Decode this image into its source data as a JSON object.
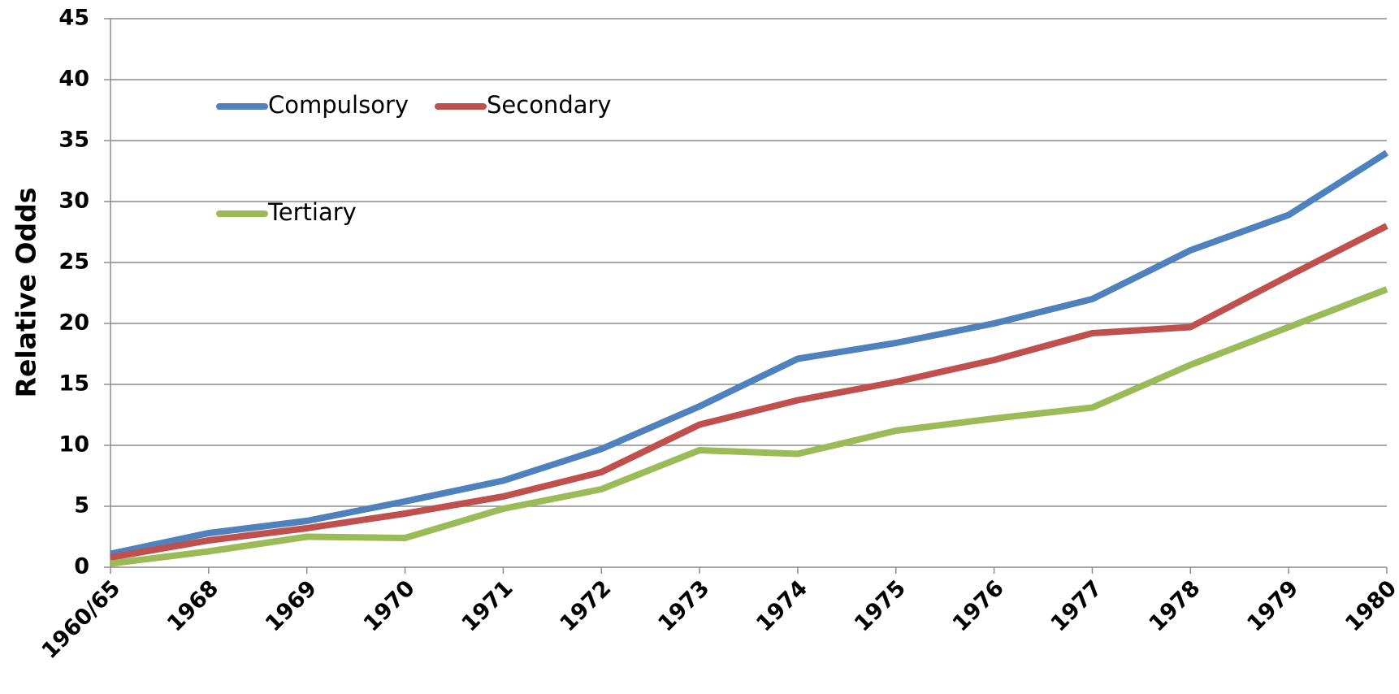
{
  "chart_data": {
    "type": "line",
    "y_label": "Relative Odds",
    "categories": [
      "1960/65",
      "1968",
      "1969",
      "1970",
      "1971",
      "1972",
      "1973",
      "1974",
      "1975",
      "1976",
      "1977",
      "1978",
      "1979",
      "1980"
    ],
    "series": [
      {
        "name": "Compulsory",
        "color": "#4f81bd",
        "values": [
          1.1,
          2.8,
          3.8,
          5.4,
          7.1,
          9.7,
          13.2,
          17.1,
          18.4,
          20.0,
          22.0,
          26.0,
          28.9,
          34.0
        ]
      },
      {
        "name": "Secondary",
        "color": "#c0504d",
        "values": [
          0.8,
          2.2,
          3.2,
          4.4,
          5.8,
          7.8,
          11.7,
          13.7,
          15.2,
          17.0,
          19.2,
          19.7,
          23.9,
          28.0
        ]
      },
      {
        "name": "Tertiary",
        "color": "#9bbb59",
        "values": [
          0.3,
          1.3,
          2.5,
          2.4,
          4.8,
          6.4,
          9.6,
          9.3,
          11.2,
          12.2,
          13.1,
          16.6,
          19.7,
          22.8
        ]
      }
    ],
    "ylim": [
      0,
      45
    ],
    "yticks": [
      0,
      5,
      10,
      15,
      20,
      25,
      30,
      35,
      40,
      45
    ],
    "grid": true,
    "legend": "upper left"
  }
}
